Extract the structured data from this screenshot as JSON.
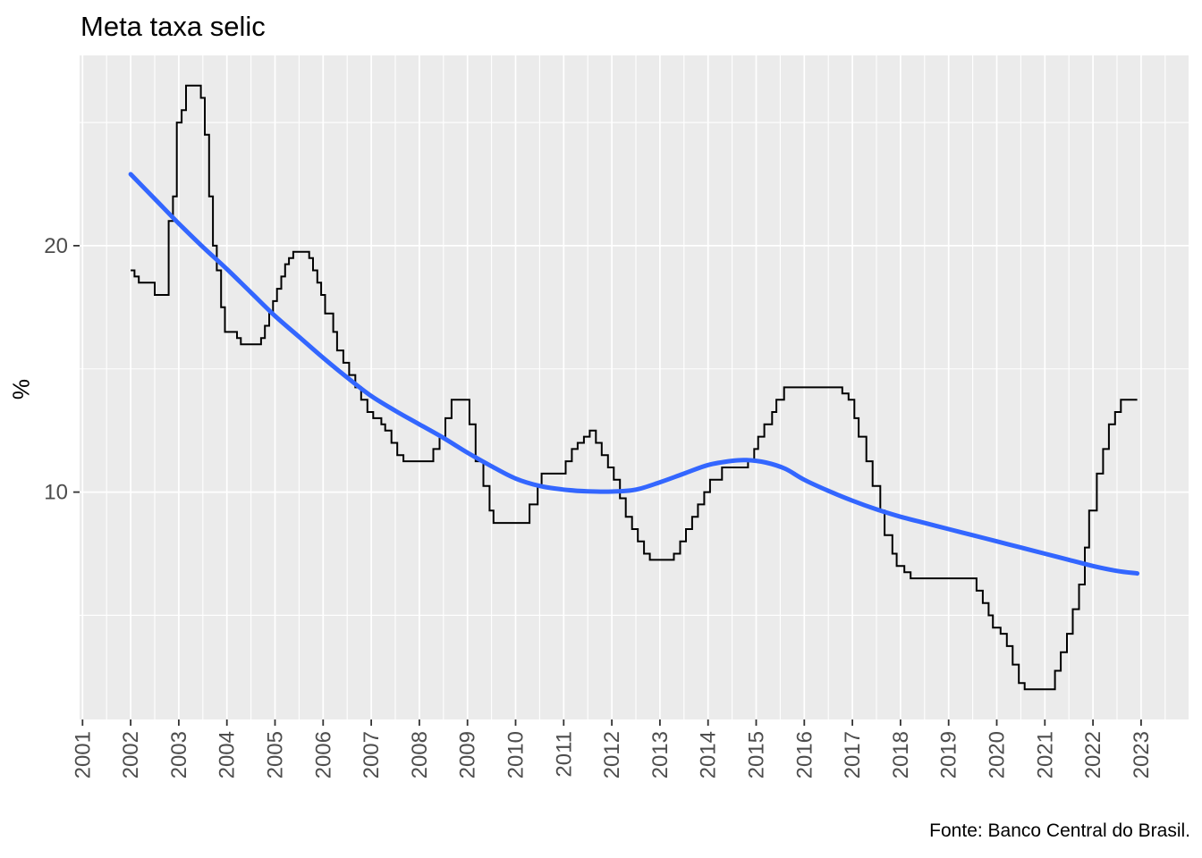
{
  "figure": {
    "title": "Meta taxa selic",
    "y_axis_title": "%",
    "caption": "Fonte: Banco Central do Brasil."
  },
  "chart_data": {
    "type": "line",
    "title": "Meta taxa selic",
    "xlabel": "",
    "ylabel": "%",
    "caption": "Fonte: Banco Central do Brasil.",
    "x_ticks": [
      2001,
      2002,
      2003,
      2004,
      2005,
      2006,
      2007,
      2008,
      2009,
      2010,
      2011,
      2012,
      2013,
      2014,
      2015,
      2016,
      2017,
      2018,
      2019,
      2020,
      2021,
      2022,
      2023
    ],
    "y_ticks": [
      10,
      20
    ],
    "y_minor_gridlines": [
      5,
      15,
      25
    ],
    "x_minor_step": 0.5,
    "x_data_range": [
      2002.0,
      2022.92
    ],
    "ylim_data": [
      2,
      26.5
    ],
    "grid": true,
    "legend": "none",
    "colors": {
      "panel_background": "#EBEBEB",
      "gridline": "#FFFFFF",
      "step_line": "#000000",
      "smooth_line": "#3366FF",
      "axis_text": "#4D4D4D",
      "tick_mark": "#333333"
    },
    "series": [
      {
        "name": "selic-target-step",
        "type": "step",
        "color": "#000000",
        "width": 2,
        "points": [
          [
            2002.0,
            19
          ],
          [
            2002.08,
            18.75
          ],
          [
            2002.17,
            18.5
          ],
          [
            2002.5,
            18
          ],
          [
            2002.79,
            21
          ],
          [
            2002.88,
            22
          ],
          [
            2002.96,
            25
          ],
          [
            2003.06,
            25.5
          ],
          [
            2003.15,
            26.5
          ],
          [
            2003.46,
            26
          ],
          [
            2003.54,
            24.5
          ],
          [
            2003.63,
            22
          ],
          [
            2003.71,
            20
          ],
          [
            2003.79,
            19
          ],
          [
            2003.88,
            17.5
          ],
          [
            2003.96,
            16.5
          ],
          [
            2004.21,
            16.25
          ],
          [
            2004.29,
            16
          ],
          [
            2004.71,
            16.25
          ],
          [
            2004.79,
            16.75
          ],
          [
            2004.88,
            17.25
          ],
          [
            2004.96,
            17.75
          ],
          [
            2005.04,
            18.25
          ],
          [
            2005.13,
            18.75
          ],
          [
            2005.21,
            19.25
          ],
          [
            2005.29,
            19.5
          ],
          [
            2005.38,
            19.75
          ],
          [
            2005.71,
            19.5
          ],
          [
            2005.79,
            19
          ],
          [
            2005.88,
            18.5
          ],
          [
            2005.96,
            18
          ],
          [
            2006.04,
            17.25
          ],
          [
            2006.21,
            16.5
          ],
          [
            2006.29,
            15.75
          ],
          [
            2006.42,
            15.25
          ],
          [
            2006.54,
            14.75
          ],
          [
            2006.67,
            14.25
          ],
          [
            2006.79,
            13.75
          ],
          [
            2006.92,
            13.25
          ],
          [
            2007.04,
            13
          ],
          [
            2007.21,
            12.75
          ],
          [
            2007.29,
            12.5
          ],
          [
            2007.42,
            12
          ],
          [
            2007.54,
            11.5
          ],
          [
            2007.67,
            11.25
          ],
          [
            2008.29,
            11.75
          ],
          [
            2008.42,
            12.25
          ],
          [
            2008.54,
            13
          ],
          [
            2008.67,
            13.75
          ],
          [
            2009.04,
            12.75
          ],
          [
            2009.17,
            11.25
          ],
          [
            2009.33,
            10.25
          ],
          [
            2009.46,
            9.25
          ],
          [
            2009.54,
            8.75
          ],
          [
            2010.29,
            9.5
          ],
          [
            2010.46,
            10.25
          ],
          [
            2010.54,
            10.75
          ],
          [
            2011.04,
            11.25
          ],
          [
            2011.17,
            11.75
          ],
          [
            2011.29,
            12
          ],
          [
            2011.42,
            12.25
          ],
          [
            2011.54,
            12.5
          ],
          [
            2011.67,
            12
          ],
          [
            2011.79,
            11.5
          ],
          [
            2011.92,
            11
          ],
          [
            2012.04,
            10.5
          ],
          [
            2012.17,
            9.75
          ],
          [
            2012.29,
            9
          ],
          [
            2012.42,
            8.5
          ],
          [
            2012.54,
            8
          ],
          [
            2012.67,
            7.5
          ],
          [
            2012.79,
            7.25
          ],
          [
            2013.29,
            7.5
          ],
          [
            2013.42,
            8
          ],
          [
            2013.54,
            8.5
          ],
          [
            2013.67,
            9
          ],
          [
            2013.79,
            9.5
          ],
          [
            2013.92,
            10
          ],
          [
            2014.04,
            10.5
          ],
          [
            2014.29,
            11
          ],
          [
            2014.83,
            11.25
          ],
          [
            2014.96,
            11.75
          ],
          [
            2015.04,
            12.25
          ],
          [
            2015.17,
            12.75
          ],
          [
            2015.33,
            13.25
          ],
          [
            2015.42,
            13.75
          ],
          [
            2015.58,
            14.25
          ],
          [
            2016.79,
            14
          ],
          [
            2016.92,
            13.75
          ],
          [
            2017.04,
            13
          ],
          [
            2017.13,
            12.25
          ],
          [
            2017.29,
            11.25
          ],
          [
            2017.42,
            10.25
          ],
          [
            2017.58,
            9.25
          ],
          [
            2017.67,
            8.25
          ],
          [
            2017.83,
            7.5
          ],
          [
            2017.92,
            7
          ],
          [
            2018.08,
            6.75
          ],
          [
            2018.21,
            6.5
          ],
          [
            2019.58,
            6
          ],
          [
            2019.71,
            5.5
          ],
          [
            2019.83,
            5
          ],
          [
            2019.92,
            4.5
          ],
          [
            2020.08,
            4.25
          ],
          [
            2020.21,
            3.75
          ],
          [
            2020.33,
            3
          ],
          [
            2020.46,
            2.25
          ],
          [
            2020.58,
            2
          ],
          [
            2021.21,
            2.75
          ],
          [
            2021.33,
            3.5
          ],
          [
            2021.46,
            4.25
          ],
          [
            2021.58,
            5.25
          ],
          [
            2021.71,
            6.25
          ],
          [
            2021.83,
            7.75
          ],
          [
            2021.92,
            9.25
          ],
          [
            2022.08,
            10.75
          ],
          [
            2022.21,
            11.75
          ],
          [
            2022.33,
            12.75
          ],
          [
            2022.46,
            13.25
          ],
          [
            2022.58,
            13.75
          ],
          [
            2022.92,
            13.75
          ]
        ]
      },
      {
        "name": "loess-smooth-trend",
        "type": "smooth",
        "color": "#3366FF",
        "width": 5,
        "points": [
          [
            2002.0,
            22.9
          ],
          [
            2002.5,
            21.9
          ],
          [
            2003.0,
            20.9
          ],
          [
            2003.5,
            19.95
          ],
          [
            2004.0,
            19.05
          ],
          [
            2004.5,
            18.1
          ],
          [
            2005.0,
            17.15
          ],
          [
            2005.5,
            16.3
          ],
          [
            2006.0,
            15.45
          ],
          [
            2006.5,
            14.65
          ],
          [
            2007.0,
            13.9
          ],
          [
            2007.5,
            13.3
          ],
          [
            2008.0,
            12.75
          ],
          [
            2008.5,
            12.2
          ],
          [
            2009.0,
            11.6
          ],
          [
            2009.5,
            11.05
          ],
          [
            2010.0,
            10.55
          ],
          [
            2010.5,
            10.25
          ],
          [
            2011.0,
            10.1
          ],
          [
            2011.5,
            10.03
          ],
          [
            2012.0,
            10.02
          ],
          [
            2012.5,
            10.1
          ],
          [
            2013.0,
            10.4
          ],
          [
            2013.5,
            10.75
          ],
          [
            2014.0,
            11.1
          ],
          [
            2014.5,
            11.27
          ],
          [
            2014.8,
            11.3
          ],
          [
            2015.2,
            11.2
          ],
          [
            2015.6,
            10.95
          ],
          [
            2016.0,
            10.5
          ],
          [
            2016.5,
            10.05
          ],
          [
            2017.0,
            9.65
          ],
          [
            2017.5,
            9.3
          ],
          [
            2018.0,
            9.0
          ],
          [
            2018.5,
            8.75
          ],
          [
            2019.0,
            8.5
          ],
          [
            2019.5,
            8.25
          ],
          [
            2020.0,
            8.0
          ],
          [
            2020.5,
            7.75
          ],
          [
            2021.0,
            7.5
          ],
          [
            2021.5,
            7.25
          ],
          [
            2022.0,
            7.0
          ],
          [
            2022.5,
            6.8
          ],
          [
            2022.92,
            6.7
          ]
        ]
      }
    ]
  }
}
